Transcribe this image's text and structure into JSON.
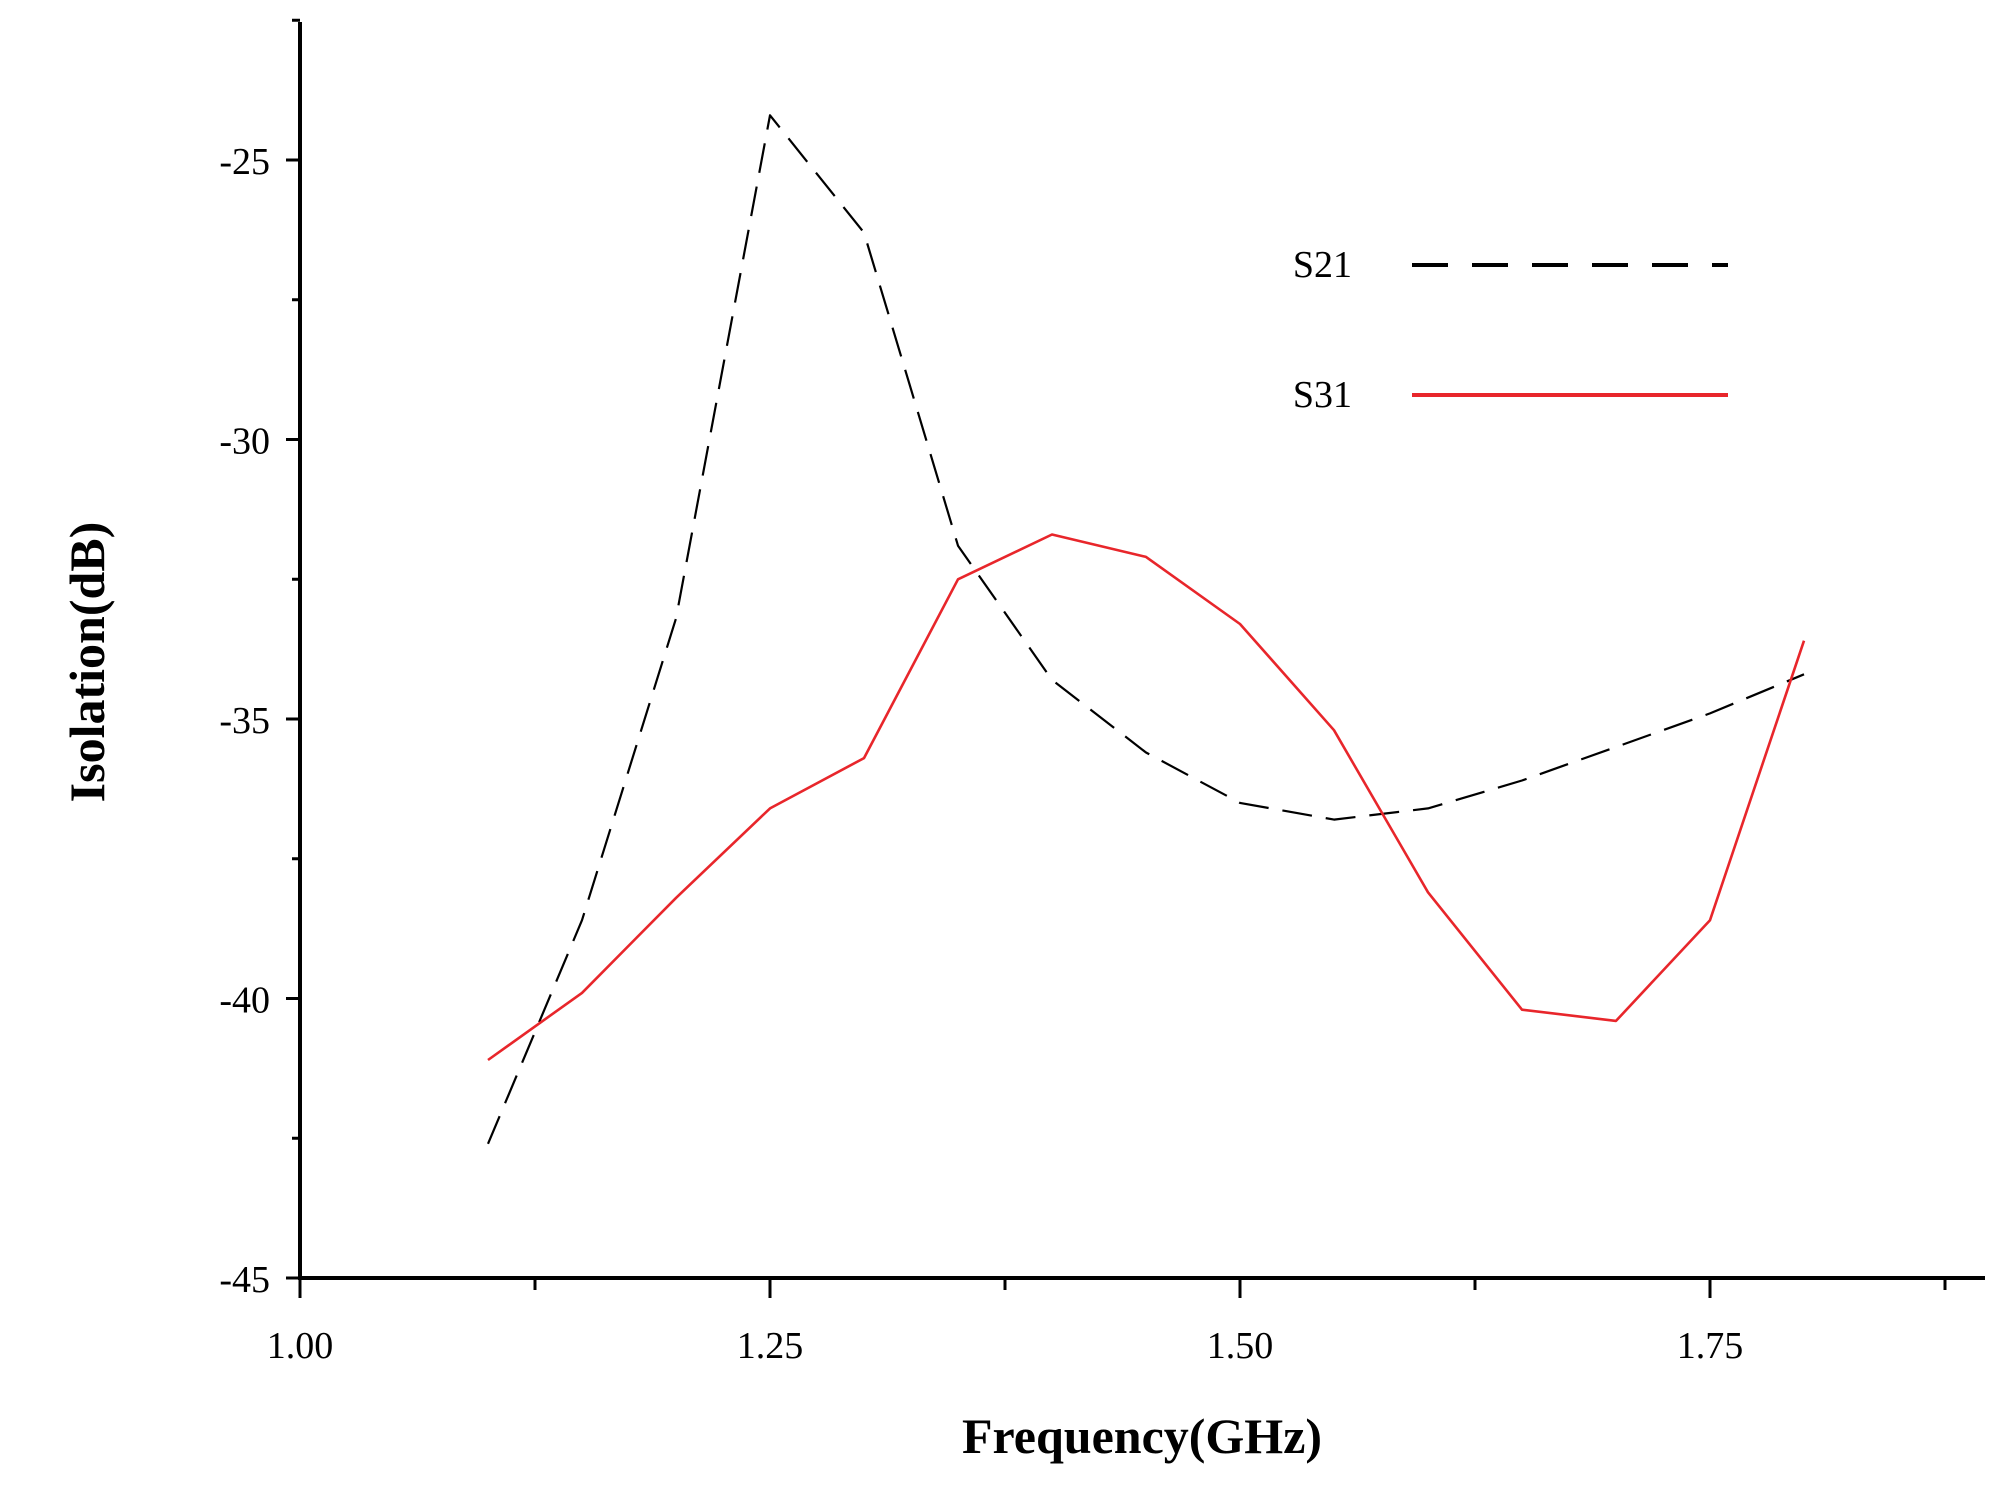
{
  "chart_data": {
    "type": "line",
    "xlabel": "Frequency(GHz)",
    "ylabel": "Isolation(dB)",
    "xlim": [
      1.0,
      1.9
    ],
    "ylim": [
      -45,
      -22.5
    ],
    "x_ticks": [
      1.0,
      1.25,
      1.5,
      1.75
    ],
    "x_tick_labels": [
      "1.00",
      "1.25",
      "1.50",
      "1.75"
    ],
    "y_ticks": [
      -45,
      -40,
      -35,
      -30,
      -25
    ],
    "y_tick_labels": [
      "-45",
      "-40",
      "-35",
      "-30",
      "-25"
    ],
    "grid": false,
    "legend_position": "top-right",
    "series": [
      {
        "name": "S21",
        "color": "#000000",
        "style": "dashed",
        "x": [
          1.1,
          1.15,
          1.2,
          1.25,
          1.3,
          1.35,
          1.4,
          1.45,
          1.5,
          1.55,
          1.6,
          1.65,
          1.7,
          1.75,
          1.8
        ],
        "values": [
          -42.6,
          -38.6,
          -33.2,
          -24.2,
          -26.3,
          -31.9,
          -34.3,
          -35.6,
          -36.5,
          -36.8,
          -36.6,
          -36.1,
          -35.5,
          -34.9,
          -34.2
        ]
      },
      {
        "name": "S31",
        "color": "#e8262b",
        "style": "solid",
        "x": [
          1.1,
          1.15,
          1.2,
          1.25,
          1.3,
          1.35,
          1.4,
          1.45,
          1.5,
          1.55,
          1.6,
          1.65,
          1.7,
          1.75,
          1.8
        ],
        "values": [
          -41.1,
          -39.9,
          -38.2,
          -36.6,
          -35.7,
          -32.5,
          -31.7,
          -32.1,
          -33.3,
          -35.2,
          -38.1,
          -40.2,
          -40.4,
          -38.6,
          -33.6
        ]
      }
    ]
  }
}
